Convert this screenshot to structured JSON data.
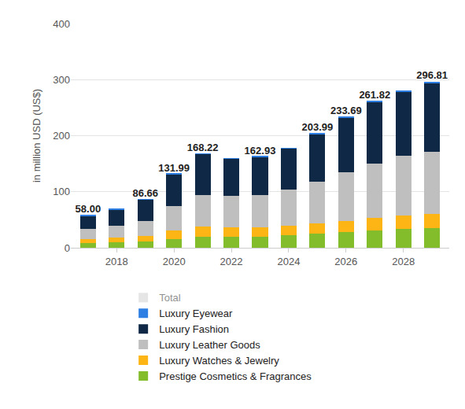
{
  "chart_data": {
    "type": "bar",
    "stacked": true,
    "grid": true,
    "legend": "bottom",
    "data_labels": true,
    "y_label": "in million USD (US$)",
    "x": [
      2017,
      2018,
      2019,
      2020,
      2021,
      2022,
      2023,
      2024,
      2025,
      2026,
      2027,
      2028,
      2029
    ],
    "xlim": [
      2016.4,
      2029.6
    ],
    "xticks": [
      2018,
      2020,
      2022,
      2024,
      2026,
      2028
    ],
    "ylim": [
      0,
      400
    ],
    "yticks": [
      0,
      100,
      200,
      300,
      400
    ],
    "series": [
      {
        "name": "Prestige Cosmetics & Fragrances",
        "color": "#84bd2c",
        "values": [
          8.5,
          10,
          11,
          15,
          19,
          19,
          19,
          22,
          25,
          28,
          31,
          33,
          35
        ]
      },
      {
        "name": "Luxury Watches & Jewelry",
        "color": "#fdb515",
        "values": [
          6.5,
          8,
          9.5,
          16,
          19,
          17,
          17,
          17,
          18,
          20,
          22,
          24,
          25
        ]
      },
      {
        "name": "Luxury Leather Goods",
        "color": "#bfbfbf",
        "values": [
          19,
          21,
          27,
          43,
          56,
          57,
          58,
          65,
          75,
          87,
          97,
          107,
          111
        ]
      },
      {
        "name": "Luxury Fashion",
        "color": "#0f2846",
        "values": [
          23.5,
          29.5,
          38.56,
          57.19,
          73.22,
          66,
          67.93,
          73,
          84.79,
          97.19,
          110.02,
          114,
          123.31
        ]
      },
      {
        "name": "Luxury Eyewear",
        "color": "#2d7fe3",
        "values": [
          0.5,
          0.5,
          0.6,
          0.8,
          1,
          1,
          1,
          1,
          1.2,
          1.5,
          1.8,
          2,
          2.5
        ]
      },
      {
        "name": "Total",
        "color": "#cccccc",
        "type": "text",
        "values": [
          58.0,
          null,
          86.66,
          131.99,
          168.22,
          null,
          162.93,
          null,
          203.99,
          233.69,
          261.82,
          null,
          296.81
        ],
        "value_labels": [
          "58.00",
          null,
          "86.66",
          "131.99",
          "168.22",
          null,
          "162.93",
          null,
          "203.99",
          "233.69",
          "261.82",
          null,
          "296.81"
        ]
      }
    ]
  }
}
